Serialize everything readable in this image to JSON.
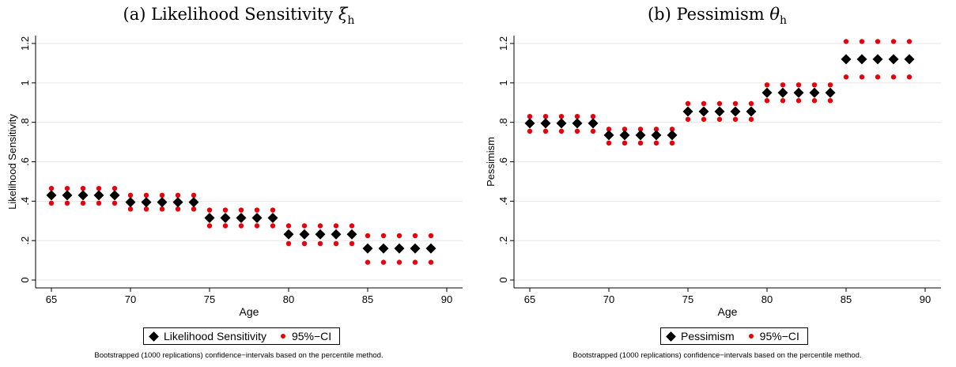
{
  "chart_data": [
    {
      "type": "scatter",
      "caption_prefix": "(a) Likelihood Sensitivity ",
      "caption_symbol": "ξ",
      "caption_sub": "h",
      "xlabel": "Age",
      "ylabel": "Likelihood Sensitivity",
      "xlim": [
        64,
        91
      ],
      "ylim": [
        -0.04,
        1.24
      ],
      "xticks": [
        65,
        70,
        75,
        80,
        85,
        90
      ],
      "xtick_labels": [
        "65",
        "70",
        "75",
        "80",
        "85",
        "90"
      ],
      "yticks": [
        0,
        0.2,
        0.4,
        0.6,
        0.8,
        1,
        1.2
      ],
      "ytick_labels": [
        "0",
        ".2",
        ".4",
        ".6",
        ".8",
        "1",
        "1.2"
      ],
      "grid": true,
      "legend_position": "bottom",
      "legend": [
        "Likelihood Sensitivity",
        "95%−CI"
      ],
      "note": "Bootstrapped (1000 replications) confidence−intervals based on the percentile method.",
      "colors": {
        "estimate": "#000000",
        "ci": "#e8000b",
        "grid": "#e6e6e6"
      },
      "x": [
        65,
        66,
        67,
        68,
        69,
        70,
        71,
        72,
        73,
        74,
        75,
        76,
        77,
        78,
        79,
        80,
        81,
        82,
        83,
        84,
        85,
        86,
        87,
        88,
        89
      ],
      "series": [
        {
          "name": "Likelihood Sensitivity",
          "marker": "diamond",
          "values": [
            0.43,
            0.43,
            0.43,
            0.43,
            0.43,
            0.395,
            0.395,
            0.395,
            0.395,
            0.395,
            0.315,
            0.315,
            0.315,
            0.315,
            0.315,
            0.232,
            0.232,
            0.232,
            0.232,
            0.232,
            0.16,
            0.16,
            0.16,
            0.16,
            0.16
          ]
        },
        {
          "name": "95%−CI lower",
          "marker": "dot",
          "values": [
            0.39,
            0.39,
            0.39,
            0.39,
            0.39,
            0.36,
            0.36,
            0.36,
            0.36,
            0.36,
            0.275,
            0.275,
            0.275,
            0.275,
            0.275,
            0.185,
            0.185,
            0.185,
            0.185,
            0.185,
            0.09,
            0.09,
            0.09,
            0.09,
            0.09
          ]
        },
        {
          "name": "95%−CI upper",
          "marker": "dot",
          "values": [
            0.465,
            0.465,
            0.465,
            0.465,
            0.465,
            0.43,
            0.43,
            0.43,
            0.43,
            0.43,
            0.355,
            0.355,
            0.355,
            0.355,
            0.355,
            0.275,
            0.275,
            0.275,
            0.275,
            0.275,
            0.225,
            0.225,
            0.225,
            0.225,
            0.225
          ]
        }
      ]
    },
    {
      "type": "scatter",
      "caption_prefix": "(b) Pessimism ",
      "caption_symbol": "θ",
      "caption_sub": "h",
      "xlabel": "Age",
      "ylabel": "Pessimism",
      "xlim": [
        64,
        91
      ],
      "ylim": [
        -0.04,
        1.24
      ],
      "xticks": [
        65,
        70,
        75,
        80,
        85,
        90
      ],
      "xtick_labels": [
        "65",
        "70",
        "75",
        "80",
        "85",
        "90"
      ],
      "yticks": [
        0,
        0.2,
        0.4,
        0.6,
        0.8,
        1,
        1.2
      ],
      "ytick_labels": [
        "0",
        ".2",
        ".4",
        ".6",
        ".8",
        "1",
        "1.2"
      ],
      "grid": true,
      "legend_position": "bottom",
      "legend": [
        "Pessimism",
        "95%−CI"
      ],
      "note": "Bootstrapped (1000 replications) confidence−intervals based on the percentile method.",
      "colors": {
        "estimate": "#000000",
        "ci": "#e8000b",
        "grid": "#e6e6e6"
      },
      "x": [
        65,
        66,
        67,
        68,
        69,
        70,
        71,
        72,
        73,
        74,
        75,
        76,
        77,
        78,
        79,
        80,
        81,
        82,
        83,
        84,
        85,
        86,
        87,
        88,
        89
      ],
      "series": [
        {
          "name": "Pessimism",
          "marker": "diamond",
          "values": [
            0.795,
            0.795,
            0.795,
            0.795,
            0.795,
            0.735,
            0.735,
            0.735,
            0.735,
            0.735,
            0.855,
            0.855,
            0.855,
            0.855,
            0.855,
            0.95,
            0.95,
            0.95,
            0.95,
            0.95,
            1.12,
            1.12,
            1.12,
            1.12,
            1.12
          ]
        },
        {
          "name": "95%−CI lower",
          "marker": "dot",
          "values": [
            0.755,
            0.755,
            0.755,
            0.755,
            0.755,
            0.695,
            0.695,
            0.695,
            0.695,
            0.695,
            0.815,
            0.815,
            0.815,
            0.815,
            0.815,
            0.91,
            0.91,
            0.91,
            0.91,
            0.91,
            1.03,
            1.03,
            1.03,
            1.03,
            1.03
          ]
        },
        {
          "name": "95%−CI upper",
          "marker": "dot",
          "values": [
            0.83,
            0.83,
            0.83,
            0.83,
            0.83,
            0.765,
            0.765,
            0.765,
            0.765,
            0.765,
            0.895,
            0.895,
            0.895,
            0.895,
            0.895,
            0.99,
            0.99,
            0.99,
            0.99,
            0.99,
            1.21,
            1.21,
            1.21,
            1.21,
            1.21
          ]
        }
      ]
    }
  ]
}
